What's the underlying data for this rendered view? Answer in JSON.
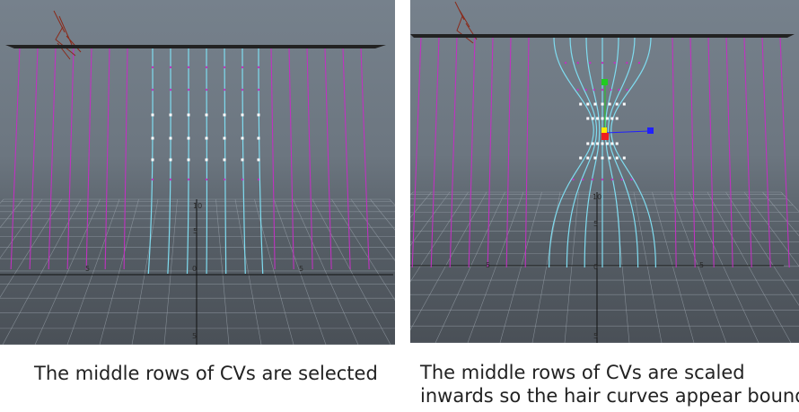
{
  "colors": {
    "guide_curve": "#c032c0",
    "hair_curve": "#7fdcf0",
    "selected_cv": "#ffffff",
    "grid_line": "#9aa3ac",
    "grid_axis": "#111111",
    "rod": "#222222",
    "scribble": "#8a2a1a",
    "manip_x": "#2020ff",
    "manip_y": "#20cc20",
    "manip_z": "#ee2020",
    "manip_center": "#ffee00"
  },
  "left_view": {
    "grid_labels": {
      "top": "10",
      "upper": "5",
      "origin": "0",
      "left": "5",
      "right": "5",
      "bottom": "5"
    }
  },
  "right_view": {
    "grid_labels": {
      "top": "10",
      "upper": "5",
      "origin": "0",
      "left": "5",
      "right": "5",
      "bottom": "5"
    }
  },
  "captions": {
    "left": "The middle rows of CVs are selected",
    "right_line1": "The middle rows of CVs are scaled",
    "right_line2": "inwards so the hair curves appear bound"
  }
}
